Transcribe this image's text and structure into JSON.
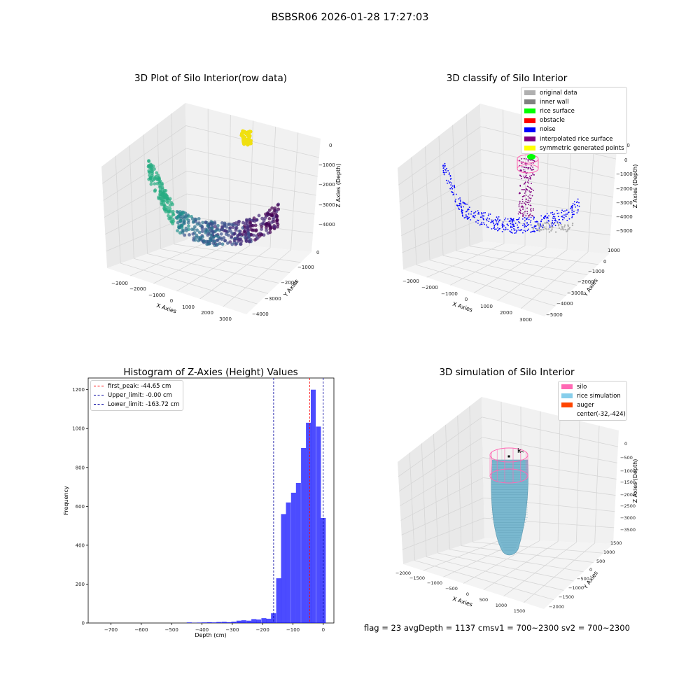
{
  "figure": {
    "suptitle": "BSBSR06 2026-01-28 17:27:03",
    "footer": "flag = 23  avgDepth = 1137 cmsv1 = 700~2300  sv2 = 700~2300"
  },
  "chart_data": [
    {
      "type": "scatter",
      "projection": "3d",
      "title": "3D Plot of Silo Interior(row data)",
      "xlabel": "X Axies",
      "ylabel": "Y Axies",
      "zlabel": "Z Axies (Depth)",
      "xticks": [
        "−3000",
        "−2000",
        "−1000",
        "0",
        "1000",
        "2000",
        "3000"
      ],
      "yticks": [
        "0",
        "−1000",
        "−2000",
        "−3000",
        "−4000"
      ],
      "zticks": [
        "0",
        "−1000",
        "−2000",
        "−3000",
        "−4000"
      ],
      "xlim": [
        -3400,
        3400
      ],
      "ylim": [
        -4300,
        300
      ],
      "zlim": [
        -4600,
        200
      ],
      "colormap": "viridis (by Z depth)",
      "grid": true
    },
    {
      "type": "scatter",
      "projection": "3d",
      "title": "3D classify of Silo Interior",
      "xlabel": "X Axies",
      "ylabel": "Y Axies",
      "zlabel": "Z Axies (Depth)",
      "xticks": [
        "−3000",
        "−2000",
        "−1000",
        "0",
        "1000",
        "2000",
        "3000"
      ],
      "yticks": [
        "1000",
        "0",
        "−1000",
        "−2000",
        "−3000",
        "−4000",
        "−5000"
      ],
      "zticks": [
        "1000",
        "0",
        "−1000",
        "−2000",
        "−3000",
        "−4000",
        "−5000"
      ],
      "legend_position": "top-right",
      "legend": [
        {
          "label": "original data",
          "color": "#b0b0b0"
        },
        {
          "label": "inner wall",
          "color": "#808080"
        },
        {
          "label": "rice surface",
          "color": "#00ff00"
        },
        {
          "label": "obstacle",
          "color": "#ff0000"
        },
        {
          "label": "noise",
          "color": "#0000ff"
        },
        {
          "label": "interpolated rice surface",
          "color": "#800080"
        },
        {
          "label": "symmetric generated points",
          "color": "#ffff00"
        }
      ],
      "grid": true
    },
    {
      "type": "bar",
      "title": "Histogram of Z-Axies (Height) Values",
      "xlabel": "Depth (cm)",
      "ylabel": "Frequency",
      "xlim": [
        -775,
        35
      ],
      "ylim": [
        0,
        1260
      ],
      "xticks": [
        -700,
        -600,
        -500,
        -400,
        -300,
        -200,
        -100,
        0
      ],
      "yticks": [
        0,
        200,
        400,
        600,
        800,
        1000,
        1200
      ],
      "bar_color": "#0000ff",
      "bin_width": 16.37,
      "bins": [
        {
          "x": -442,
          "value": 3
        },
        {
          "x": -426,
          "value": 1
        },
        {
          "x": -409,
          "value": 2
        },
        {
          "x": -393,
          "value": 3
        },
        {
          "x": -376,
          "value": 4
        },
        {
          "x": -360,
          "value": 3
        },
        {
          "x": -344,
          "value": 5
        },
        {
          "x": -327,
          "value": 6
        },
        {
          "x": -311,
          "value": 4
        },
        {
          "x": -295,
          "value": 7
        },
        {
          "x": -278,
          "value": 12
        },
        {
          "x": -262,
          "value": 14
        },
        {
          "x": -245,
          "value": 12
        },
        {
          "x": -229,
          "value": 20
        },
        {
          "x": -213,
          "value": 18
        },
        {
          "x": -196,
          "value": 25
        },
        {
          "x": -180,
          "value": 22
        },
        {
          "x": -164,
          "value": 50
        },
        {
          "x": -147,
          "value": 230
        },
        {
          "x": -131,
          "value": 560
        },
        {
          "x": -115,
          "value": 620
        },
        {
          "x": -98,
          "value": 670
        },
        {
          "x": -82,
          "value": 720
        },
        {
          "x": -65,
          "value": 900
        },
        {
          "x": -49,
          "value": 1030
        },
        {
          "x": -33,
          "value": 1200
        },
        {
          "x": -16,
          "value": 1010
        },
        {
          "x": 0,
          "value": 540
        }
      ],
      "vlines": [
        {
          "label": "first_peak: -44.65 cm",
          "x": -44.65,
          "color": "#ff0000"
        },
        {
          "label": "Upper_limit: -0.00 cm",
          "x": -0.0,
          "color": "#0000a0"
        },
        {
          "label": "Lower_limit: -163.72 cm",
          "x": -163.72,
          "color": "#0000a0"
        }
      ],
      "legend_position": "top-left"
    },
    {
      "type": "scatter",
      "projection": "3d",
      "title": "3D simulation of Silo Interior",
      "xlabel": "X Axies",
      "ylabel": "Y Axies",
      "zlabel": "Z Axies (Depth)",
      "xticks": [
        "−2000",
        "−1500",
        "−1000",
        "−500",
        "0",
        "500",
        "1000",
        "1500"
      ],
      "yticks": [
        "1500",
        "1000",
        "500",
        "0",
        "−500",
        "−1000",
        "−1500",
        "−2000"
      ],
      "zticks": [
        "0",
        "−500",
        "−1000",
        "−1500",
        "−2000",
        "−2500",
        "−3000",
        "−3500"
      ],
      "legend_position": "top-right",
      "legend": [
        {
          "label": "silo",
          "color": "#ff69b4"
        },
        {
          "label": "rice simulation",
          "color": "#87ceeb"
        },
        {
          "label": "auger",
          "color": "#ff4500"
        },
        {
          "label": "center(-32,-424)",
          "color": ""
        }
      ],
      "annotation": "k",
      "grid": true
    }
  ]
}
